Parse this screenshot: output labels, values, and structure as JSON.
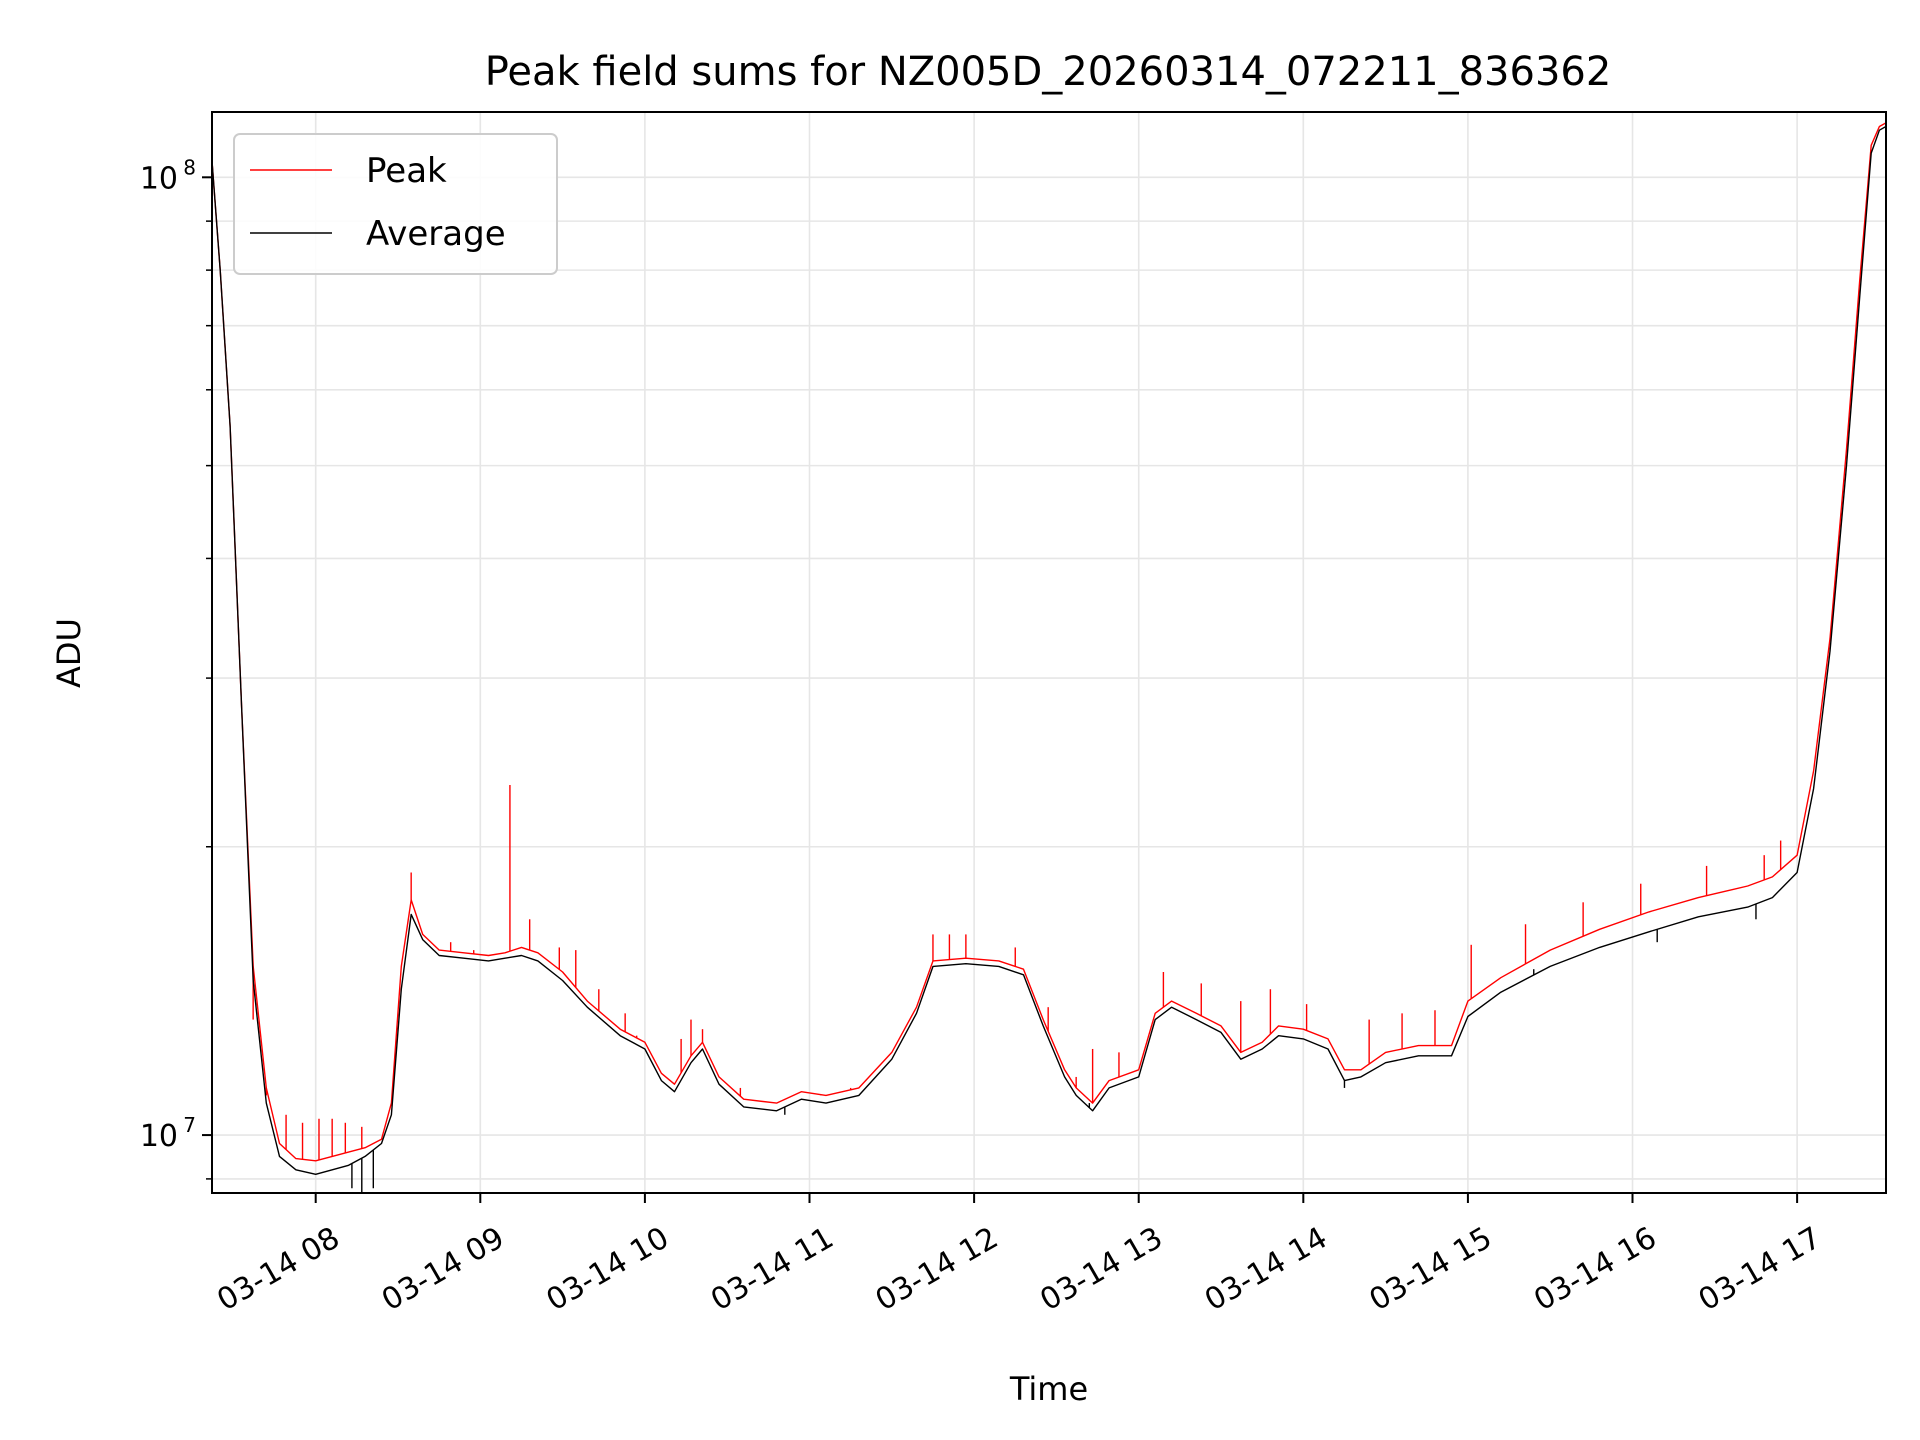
{
  "chart_data": {
    "type": "line",
    "title": "Peak field sums for NZ005D_20260314_072211_836362",
    "xlabel": "Time",
    "ylabel": "ADU",
    "yscale": "log",
    "xlim": [
      7.37,
      17.54
    ],
    "ylim": [
      8700000,
      117000000
    ],
    "x_unit": "hour of day on 03-14",
    "x_ticks": [
      {
        "value": 8,
        "label": "03-14 08"
      },
      {
        "value": 9,
        "label": "03-14 09"
      },
      {
        "value": 10,
        "label": "03-14 10"
      },
      {
        "value": 11,
        "label": "03-14 11"
      },
      {
        "value": 12,
        "label": "03-14 12"
      },
      {
        "value": 13,
        "label": "03-14 13"
      },
      {
        "value": 14,
        "label": "03-14 14"
      },
      {
        "value": 15,
        "label": "03-14 15"
      },
      {
        "value": 16,
        "label": "03-14 16"
      },
      {
        "value": 17,
        "label": "03-14 17"
      }
    ],
    "y_major_ticks": [
      {
        "value": 10000000,
        "base": "10",
        "exponent": "7"
      },
      {
        "value": 100000000,
        "base": "10",
        "exponent": "8"
      }
    ],
    "y_minor_ticks": [
      9000000,
      20000000,
      30000000,
      40000000,
      50000000,
      60000000,
      70000000,
      80000000,
      90000000
    ],
    "grid": true,
    "legend_position": "top-left",
    "series": [
      {
        "name": "Peak",
        "color": "#ff0000",
        "spikes": [
          [
            7.62,
            13200000
          ],
          [
            7.7,
            11000000
          ],
          [
            7.82,
            10500000
          ],
          [
            7.92,
            10300000
          ],
          [
            8.02,
            10400000
          ],
          [
            8.1,
            10400000
          ],
          [
            8.18,
            10300000
          ],
          [
            8.28,
            10200000
          ],
          [
            8.58,
            18800000
          ],
          [
            8.82,
            15900000
          ],
          [
            8.96,
            15600000
          ],
          [
            9.18,
            23200000
          ],
          [
            9.3,
            16800000
          ],
          [
            9.48,
            15700000
          ],
          [
            9.58,
            15600000
          ],
          [
            9.72,
            14200000
          ],
          [
            9.88,
            13400000
          ],
          [
            9.95,
            12700000
          ],
          [
            10.22,
            12600000
          ],
          [
            10.28,
            13200000
          ],
          [
            10.35,
            12900000
          ],
          [
            10.58,
            11200000
          ],
          [
            11.07,
            11000000
          ],
          [
            11.25,
            11200000
          ],
          [
            11.75,
            16200000
          ],
          [
            11.85,
            16200000
          ],
          [
            11.95,
            16200000
          ],
          [
            12.25,
            15700000
          ],
          [
            12.45,
            13600000
          ],
          [
            12.62,
            11500000
          ],
          [
            12.72,
            12300000
          ],
          [
            12.88,
            12200000
          ],
          [
            13.15,
            14800000
          ],
          [
            13.38,
            14400000
          ],
          [
            13.62,
            13800000
          ],
          [
            13.8,
            14200000
          ],
          [
            14.02,
            13700000
          ],
          [
            14.4,
            13200000
          ],
          [
            14.6,
            13400000
          ],
          [
            14.8,
            13500000
          ],
          [
            15.02,
            15800000
          ],
          [
            15.35,
            16600000
          ],
          [
            15.7,
            17500000
          ],
          [
            16.05,
            18300000
          ],
          [
            16.45,
            19100000
          ],
          [
            16.8,
            19600000
          ],
          [
            16.9,
            20300000
          ]
        ],
        "points": [
          [
            7.37,
            104000000
          ],
          [
            7.42,
            80000000
          ],
          [
            7.48,
            55000000
          ],
          [
            7.55,
            28000000
          ],
          [
            7.62,
            15000000
          ],
          [
            7.7,
            11200000
          ],
          [
            7.78,
            9800000
          ],
          [
            7.88,
            9450000
          ],
          [
            8.0,
            9400000
          ],
          [
            8.1,
            9500000
          ],
          [
            8.2,
            9600000
          ],
          [
            8.3,
            9700000
          ],
          [
            8.4,
            9900000
          ],
          [
            8.46,
            10800000
          ],
          [
            8.52,
            15000000
          ],
          [
            8.58,
            17600000
          ],
          [
            8.65,
            16200000
          ],
          [
            8.75,
            15600000
          ],
          [
            8.9,
            15500000
          ],
          [
            9.05,
            15400000
          ],
          [
            9.15,
            15500000
          ],
          [
            9.25,
            15700000
          ],
          [
            9.35,
            15500000
          ],
          [
            9.5,
            14800000
          ],
          [
            9.65,
            13800000
          ],
          [
            9.85,
            12900000
          ],
          [
            10.0,
            12500000
          ],
          [
            10.1,
            11600000
          ],
          [
            10.18,
            11300000
          ],
          [
            10.28,
            12100000
          ],
          [
            10.35,
            12500000
          ],
          [
            10.45,
            11500000
          ],
          [
            10.6,
            10900000
          ],
          [
            10.8,
            10800000
          ],
          [
            10.95,
            11100000
          ],
          [
            11.1,
            11000000
          ],
          [
            11.3,
            11200000
          ],
          [
            11.5,
            12200000
          ],
          [
            11.65,
            13600000
          ],
          [
            11.75,
            15200000
          ],
          [
            11.95,
            15300000
          ],
          [
            12.15,
            15200000
          ],
          [
            12.3,
            14900000
          ],
          [
            12.42,
            13200000
          ],
          [
            12.55,
            11700000
          ],
          [
            12.62,
            11200000
          ],
          [
            12.72,
            10800000
          ],
          [
            12.82,
            11400000
          ],
          [
            13.0,
            11700000
          ],
          [
            13.1,
            13400000
          ],
          [
            13.2,
            13800000
          ],
          [
            13.35,
            13400000
          ],
          [
            13.5,
            13000000
          ],
          [
            13.62,
            12200000
          ],
          [
            13.75,
            12500000
          ],
          [
            13.85,
            13000000
          ],
          [
            14.0,
            12900000
          ],
          [
            14.15,
            12600000
          ],
          [
            14.25,
            11700000
          ],
          [
            14.35,
            11700000
          ],
          [
            14.5,
            12200000
          ],
          [
            14.7,
            12400000
          ],
          [
            14.9,
            12400000
          ],
          [
            15.0,
            13800000
          ],
          [
            15.2,
            14600000
          ],
          [
            15.5,
            15600000
          ],
          [
            15.8,
            16400000
          ],
          [
            16.1,
            17100000
          ],
          [
            16.4,
            17700000
          ],
          [
            16.7,
            18200000
          ],
          [
            16.85,
            18600000
          ],
          [
            17.0,
            19600000
          ],
          [
            17.1,
            24000000
          ],
          [
            17.2,
            33000000
          ],
          [
            17.3,
            52000000
          ],
          [
            17.38,
            78000000
          ],
          [
            17.45,
            108000000
          ],
          [
            17.5,
            113000000
          ],
          [
            17.54,
            114000000
          ]
        ]
      },
      {
        "name": "Average",
        "color": "#000000",
        "dips": [
          [
            8.22,
            8800000
          ],
          [
            8.28,
            8700000
          ],
          [
            8.35,
            8800000
          ],
          [
            10.85,
            10500000
          ],
          [
            12.7,
            10800000
          ],
          [
            14.25,
            11200000
          ],
          [
            15.4,
            14900000
          ],
          [
            16.15,
            15900000
          ],
          [
            16.75,
            16800000
          ]
        ],
        "points": [
          [
            7.37,
            104000000
          ],
          [
            7.42,
            80000000
          ],
          [
            7.48,
            55000000
          ],
          [
            7.55,
            28000000
          ],
          [
            7.62,
            14500000
          ],
          [
            7.7,
            10800000
          ],
          [
            7.78,
            9500000
          ],
          [
            7.88,
            9200000
          ],
          [
            8.0,
            9100000
          ],
          [
            8.1,
            9200000
          ],
          [
            8.2,
            9300000
          ],
          [
            8.3,
            9500000
          ],
          [
            8.4,
            9800000
          ],
          [
            8.46,
            10500000
          ],
          [
            8.52,
            14200000
          ],
          [
            8.58,
            17000000
          ],
          [
            8.65,
            16000000
          ],
          [
            8.75,
            15400000
          ],
          [
            8.9,
            15300000
          ],
          [
            9.05,
            15200000
          ],
          [
            9.15,
            15300000
          ],
          [
            9.25,
            15400000
          ],
          [
            9.35,
            15200000
          ],
          [
            9.5,
            14500000
          ],
          [
            9.65,
            13600000
          ],
          [
            9.85,
            12700000
          ],
          [
            10.0,
            12300000
          ],
          [
            10.1,
            11400000
          ],
          [
            10.18,
            11100000
          ],
          [
            10.28,
            11900000
          ],
          [
            10.35,
            12300000
          ],
          [
            10.45,
            11300000
          ],
          [
            10.6,
            10700000
          ],
          [
            10.8,
            10600000
          ],
          [
            10.95,
            10900000
          ],
          [
            11.1,
            10800000
          ],
          [
            11.3,
            11000000
          ],
          [
            11.5,
            12000000
          ],
          [
            11.65,
            13400000
          ],
          [
            11.75,
            15000000
          ],
          [
            11.95,
            15100000
          ],
          [
            12.15,
            15000000
          ],
          [
            12.3,
            14700000
          ],
          [
            12.42,
            13000000
          ],
          [
            12.55,
            11500000
          ],
          [
            12.62,
            11000000
          ],
          [
            12.72,
            10600000
          ],
          [
            12.82,
            11200000
          ],
          [
            13.0,
            11500000
          ],
          [
            13.1,
            13200000
          ],
          [
            13.2,
            13600000
          ],
          [
            13.35,
            13200000
          ],
          [
            13.5,
            12800000
          ],
          [
            13.62,
            12000000
          ],
          [
            13.75,
            12300000
          ],
          [
            13.85,
            12700000
          ],
          [
            14.0,
            12600000
          ],
          [
            14.15,
            12300000
          ],
          [
            14.25,
            11400000
          ],
          [
            14.35,
            11500000
          ],
          [
            14.5,
            11900000
          ],
          [
            14.7,
            12100000
          ],
          [
            14.9,
            12100000
          ],
          [
            15.0,
            13300000
          ],
          [
            15.2,
            14100000
          ],
          [
            15.5,
            15000000
          ],
          [
            15.8,
            15700000
          ],
          [
            16.1,
            16300000
          ],
          [
            16.4,
            16900000
          ],
          [
            16.7,
            17300000
          ],
          [
            16.85,
            17700000
          ],
          [
            17.0,
            18800000
          ],
          [
            17.1,
            23000000
          ],
          [
            17.2,
            32000000
          ],
          [
            17.3,
            50000000
          ],
          [
            17.38,
            75000000
          ],
          [
            17.45,
            106000000
          ],
          [
            17.5,
            112000000
          ],
          [
            17.54,
            113000000
          ]
        ]
      }
    ]
  }
}
